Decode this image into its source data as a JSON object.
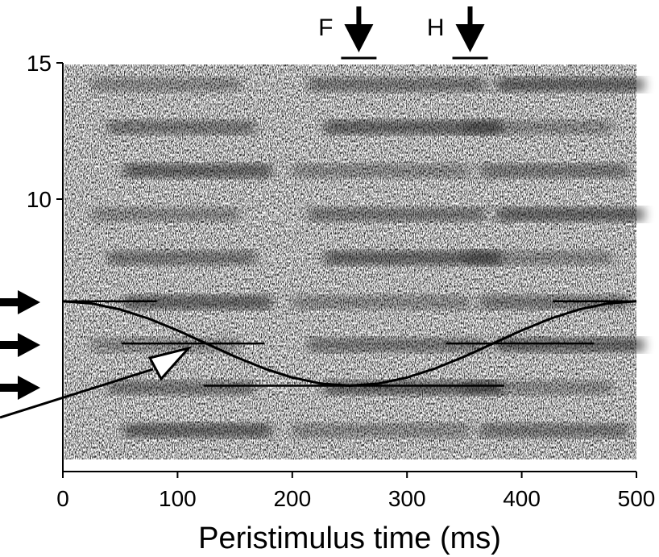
{
  "chart_data": {
    "type": "line",
    "xlabel": "Peristimulus time (ms)",
    "xlim": [
      0,
      500
    ],
    "xticks": [
      0,
      100,
      200,
      300,
      400,
      500
    ],
    "ylim": [
      0,
      15
    ],
    "yticks": [
      10,
      15
    ],
    "series": [
      {
        "color": "#000000",
        "x": [
          0,
          25,
          50,
          75,
          100,
          125,
          150,
          175,
          200,
          225,
          250,
          275,
          300,
          325,
          350,
          375,
          400,
          425,
          450,
          475,
          500
        ],
        "values": [
          6.25,
          6.17,
          5.95,
          5.61,
          5.18,
          4.7,
          4.22,
          3.79,
          3.45,
          3.23,
          3.15,
          3.23,
          3.45,
          3.79,
          4.22,
          4.7,
          5.18,
          5.61,
          5.95,
          6.17,
          6.25
        ]
      }
    ],
    "segments": [
      {
        "y": 6.25,
        "x0": 0,
        "x1": 82
      },
      {
        "y": 6.25,
        "x0": 427,
        "x1": 500
      },
      {
        "y": 4.7,
        "x0": 51,
        "x1": 176
      },
      {
        "y": 4.7,
        "x0": 334,
        "x1": 463
      },
      {
        "y": 3.15,
        "x0": 123,
        "x1": 385
      }
    ],
    "annotations": [
      {
        "text": "F",
        "x": 258
      },
      {
        "text": "H",
        "x": 355
      }
    ]
  }
}
